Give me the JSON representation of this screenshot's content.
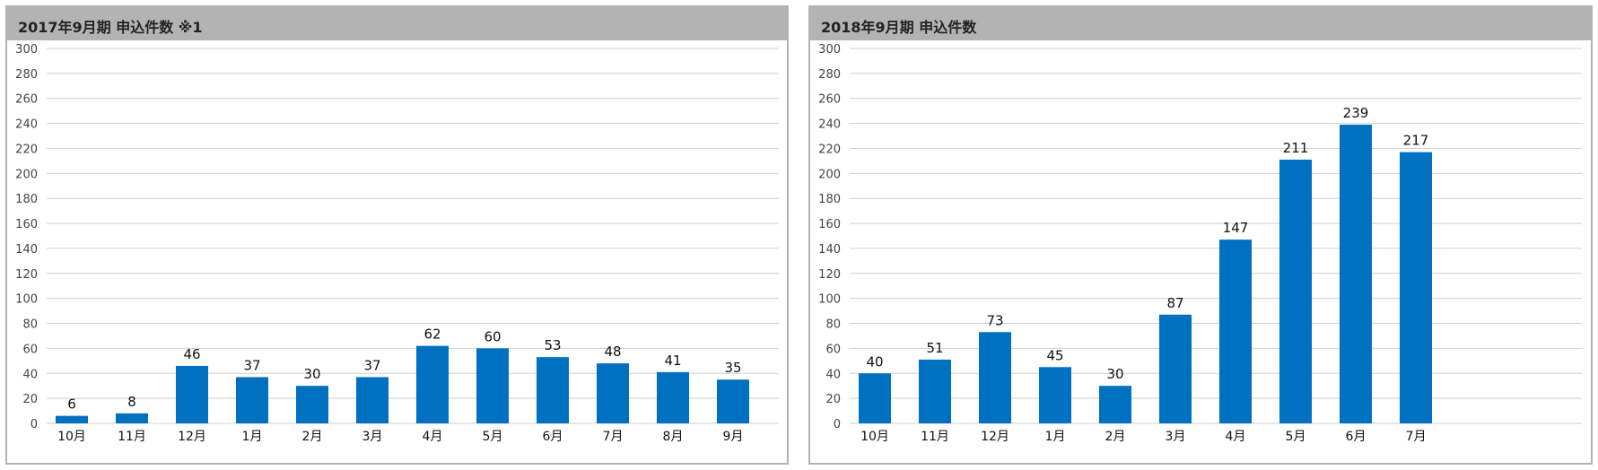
{
  "chart_data": [
    {
      "type": "bar",
      "title": "2017年9月期 申込件数 ※1",
      "categories": [
        "10月",
        "11月",
        "12月",
        "1月",
        "2月",
        "3月",
        "4月",
        "5月",
        "6月",
        "7月",
        "8月",
        "9月"
      ],
      "values": [
        6,
        8,
        46,
        37,
        30,
        37,
        62,
        60,
        53,
        48,
        41,
        35
      ],
      "ylim": [
        0,
        300
      ],
      "yticks": [
        0,
        20,
        40,
        60,
        80,
        100,
        120,
        140,
        160,
        180,
        200,
        220,
        240,
        260,
        280,
        300
      ],
      "grid": true,
      "color": "#0070c0"
    },
    {
      "type": "bar",
      "title": "2018年9月期 申込件数",
      "categories": [
        "10月",
        "11月",
        "12月",
        "1月",
        "2月",
        "3月",
        "4月",
        "5月",
        "6月",
        "7月"
      ],
      "values": [
        40,
        51,
        73,
        45,
        30,
        87,
        147,
        211,
        239,
        217
      ],
      "ylim": [
        0,
        300
      ],
      "yticks": [
        0,
        20,
        40,
        60,
        80,
        100,
        120,
        140,
        160,
        180,
        200,
        220,
        240,
        260,
        280,
        300
      ],
      "grid": true,
      "color": "#0070c0"
    }
  ]
}
